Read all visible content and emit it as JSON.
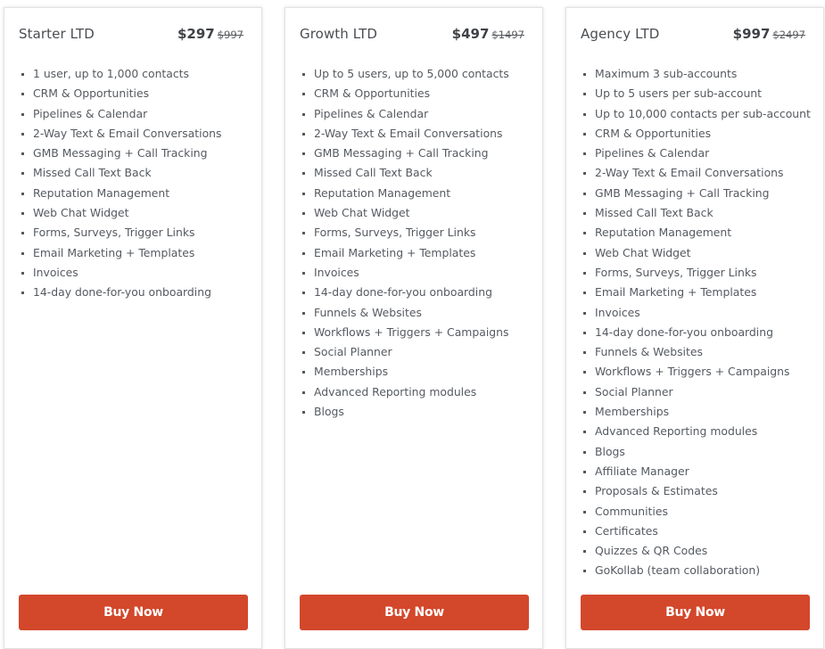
{
  "plans": [
    {
      "name": "Starter LTD",
      "price": "$297",
      "old_price": "$997",
      "features": [
        "1 user, up to 1,000 contacts",
        "CRM & Opportunities",
        "Pipelines & Calendar",
        "2-Way Text & Email Conversations",
        "GMB Messaging + Call Tracking",
        "Missed Call Text Back",
        "Reputation Management",
        "Web Chat Widget",
        "Forms, Surveys, Trigger Links",
        "Email Marketing + Templates",
        "Invoices",
        "14-day done-for-you onboarding"
      ],
      "button_label": "Buy Now"
    },
    {
      "name": "Growth LTD",
      "price": "$497",
      "old_price": "$1497",
      "features": [
        "Up to 5 users, up to 5,000 contacts",
        "CRM & Opportunities",
        "Pipelines & Calendar",
        "2-Way Text & Email Conversations",
        "GMB Messaging + Call Tracking",
        "Missed Call Text Back",
        "Reputation Management",
        "Web Chat Widget",
        "Forms, Surveys, Trigger Links",
        "Email Marketing + Templates",
        "Invoices",
        "14-day done-for-you onboarding",
        "Funnels & Websites",
        "Workflows + Triggers + Campaigns",
        "Social Planner",
        "Memberships",
        "Advanced Reporting modules",
        "Blogs"
      ],
      "button_label": "Buy Now"
    },
    {
      "name": "Agency LTD",
      "price": "$997",
      "old_price": "$2497",
      "features": [
        "Maximum 3 sub-accounts",
        "Up to 5 users per sub-account",
        "Up to 10,000 contacts per sub-account",
        "CRM & Opportunities",
        "Pipelines & Calendar",
        "2-Way Text & Email Conversations",
        "GMB Messaging + Call Tracking",
        "Missed Call Text Back",
        "Reputation Management",
        "Web Chat Widget",
        "Forms, Surveys, Trigger Links",
        "Email Marketing + Templates",
        "Invoices",
        "14-day done-for-you onboarding",
        "Funnels & Websites",
        "Workflows + Triggers + Campaigns",
        "Social Planner",
        "Memberships",
        "Advanced Reporting modules",
        "Blogs",
        "Affiliate Manager",
        "Proposals & Estimates",
        "Communities",
        "Certificates",
        "Quizzes & QR Codes",
        "GoKollab (team collaboration)"
      ],
      "button_label": "Buy Now"
    }
  ],
  "colors": {
    "button": "#d3472b",
    "text": "#555a60",
    "title": "#4a4d52"
  }
}
